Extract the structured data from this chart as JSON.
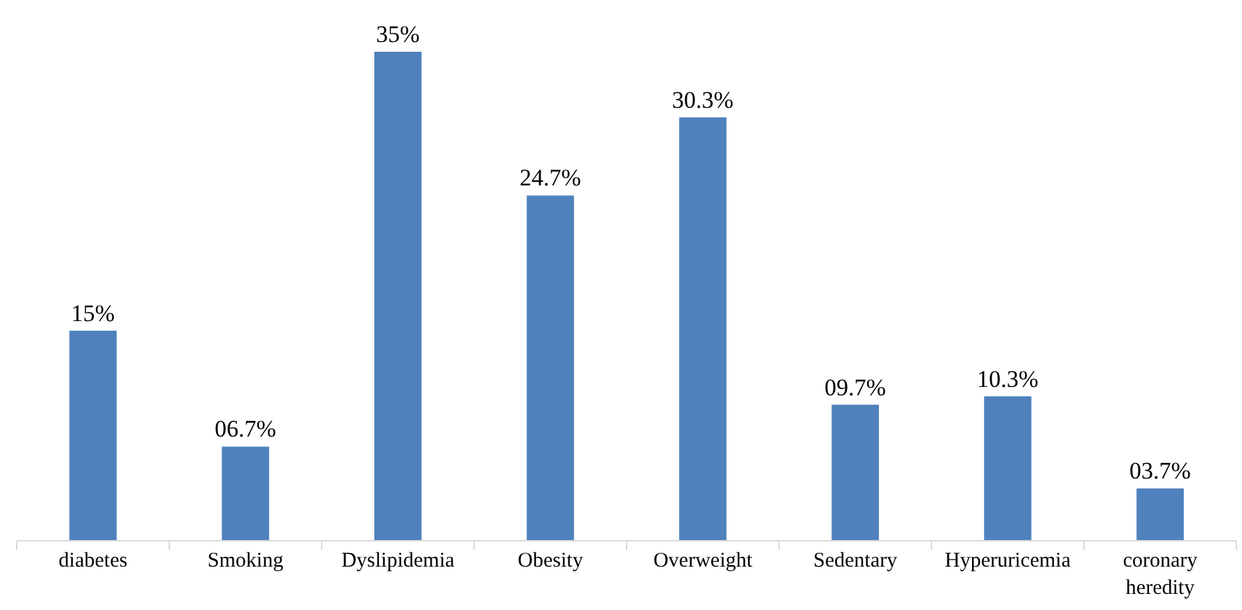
{
  "chart_data": {
    "type": "bar",
    "categories": [
      "diabetes",
      "Smoking",
      "Dyslipidemia",
      "Obesity",
      "Overweight",
      "Sedentary",
      "Hyperuricemia",
      "coronary\nheredity"
    ],
    "values": [
      15,
      6.7,
      35,
      24.7,
      30.3,
      9.7,
      10.3,
      3.7
    ],
    "value_labels": [
      "15%",
      "06.7%",
      "35%",
      "24.7%",
      "30.3%",
      "09.7%",
      "10.3%",
      "03.7%"
    ],
    "color": "#4f81bd"
  }
}
